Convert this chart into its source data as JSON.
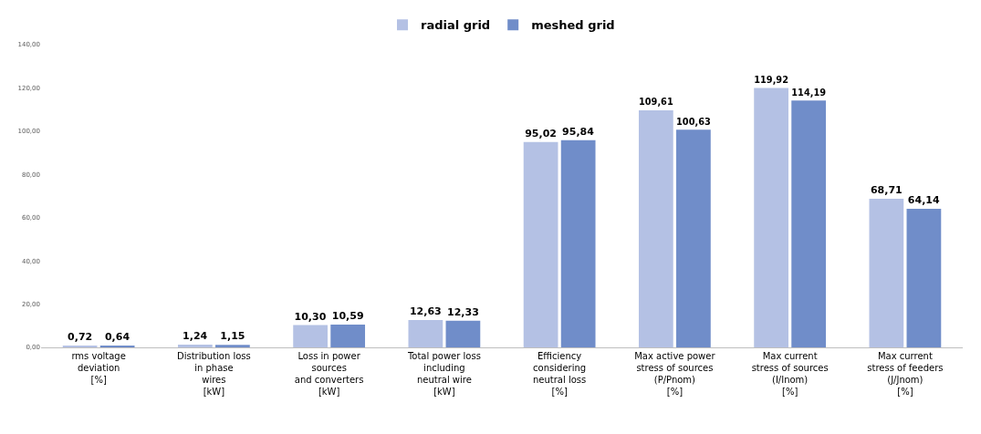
{
  "chart_data": {
    "type": "bar",
    "categories": [
      "rms voltage\ndeviation\n[%]",
      "Distribution loss\nin phase\nwires\n[kW]",
      "Loss in power\nsources\nand converters\n[kW]",
      "Total power loss\nincluding\nneutral wire\n[kW]",
      "Efficiency\nconsidering\nneutral loss\n[%]",
      "Max active power\nstress of sources\n(P/Pnom)\n[%]",
      "Max current\nstress of sources\n(I/Inom)\n[%]",
      "Max current\nstress of feeders\n(J/Jnom)\n[%]"
    ],
    "series": [
      {
        "name": "radial grid",
        "color": "#b4c1e4",
        "values": [
          0.72,
          1.24,
          10.3,
          12.63,
          95.02,
          109.61,
          119.92,
          68.71
        ],
        "value_labels": [
          "0,72",
          "1,24",
          "10,30",
          "12,63",
          "95,02",
          "109,61",
          "119,92",
          "68,71"
        ]
      },
      {
        "name": "meshed grid",
        "color": "#708dc9",
        "values": [
          0.64,
          1.15,
          10.59,
          12.33,
          95.84,
          100.63,
          114.19,
          64.14
        ],
        "value_labels": [
          "0,64",
          "1,15",
          "10,59",
          "12,33",
          "95,84",
          "100,63",
          "114,19",
          "64,14"
        ]
      }
    ],
    "ylim": [
      0,
      140
    ],
    "yticks": [
      {
        "value": 0,
        "label": "0,00"
      },
      {
        "value": 20,
        "label": "20,00"
      },
      {
        "value": 40,
        "label": "40,00"
      },
      {
        "value": 60,
        "label": "60,00"
      },
      {
        "value": 80,
        "label": "80,00"
      },
      {
        "value": 100,
        "label": "100,00"
      },
      {
        "value": 120,
        "label": "120,00"
      },
      {
        "value": 140,
        "label": "140,00"
      }
    ],
    "legend": "top"
  }
}
